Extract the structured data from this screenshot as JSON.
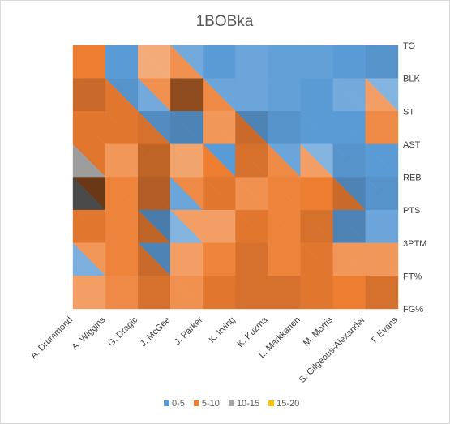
{
  "chart_data": {
    "type": "heatmap",
    "title": "1BOBka",
    "categories": [
      "A. Drummond",
      "A. Wiggins",
      "G. Dragic",
      "J. McGee",
      "J. Parker",
      "K. Irving",
      "K. Kuzma",
      "L. Markkanen",
      "M. Morris",
      "S. Gilgeous-Alexander",
      "T. Evans"
    ],
    "rows": [
      "TO",
      "BLK",
      "ST",
      "AST",
      "REB",
      "PTS",
      "3PTM",
      "FT%",
      "FG%"
    ],
    "bands": [
      {
        "name": "0-5",
        "color": "#5b9bd5"
      },
      {
        "name": "5-10",
        "color": "#ed7d31"
      },
      {
        "name": "10-15",
        "color": "#a5a5a5"
      },
      {
        "name": "15-20",
        "color": "#ffc000"
      }
    ],
    "values": [
      [
        6,
        3,
        3,
        2,
        1,
        1,
        2,
        2,
        2,
        3,
        1
      ],
      [
        12,
        6,
        3,
        12,
        5,
        1,
        3,
        3,
        3,
        2,
        2
      ],
      [
        5,
        9,
        5,
        6,
        4,
        7,
        3,
        4,
        3,
        6,
        7
      ],
      [
        7,
        4,
        8,
        3,
        3,
        8,
        4,
        2,
        4,
        3,
        8
      ],
      [
        17,
        6,
        8,
        4,
        9,
        3,
        6,
        6,
        7,
        3,
        3
      ],
      [
        8,
        6,
        7,
        3,
        6,
        8,
        6,
        7,
        6,
        4,
        2
      ],
      [
        3,
        7,
        7,
        3,
        8,
        11,
        7,
        7,
        5,
        3,
        6
      ],
      [
        2,
        7,
        8,
        4,
        8,
        9,
        9,
        8,
        6,
        9,
        7
      ],
      [
        6,
        7,
        9,
        6,
        7,
        7,
        7,
        7,
        7,
        6,
        7
      ]
    ]
  }
}
